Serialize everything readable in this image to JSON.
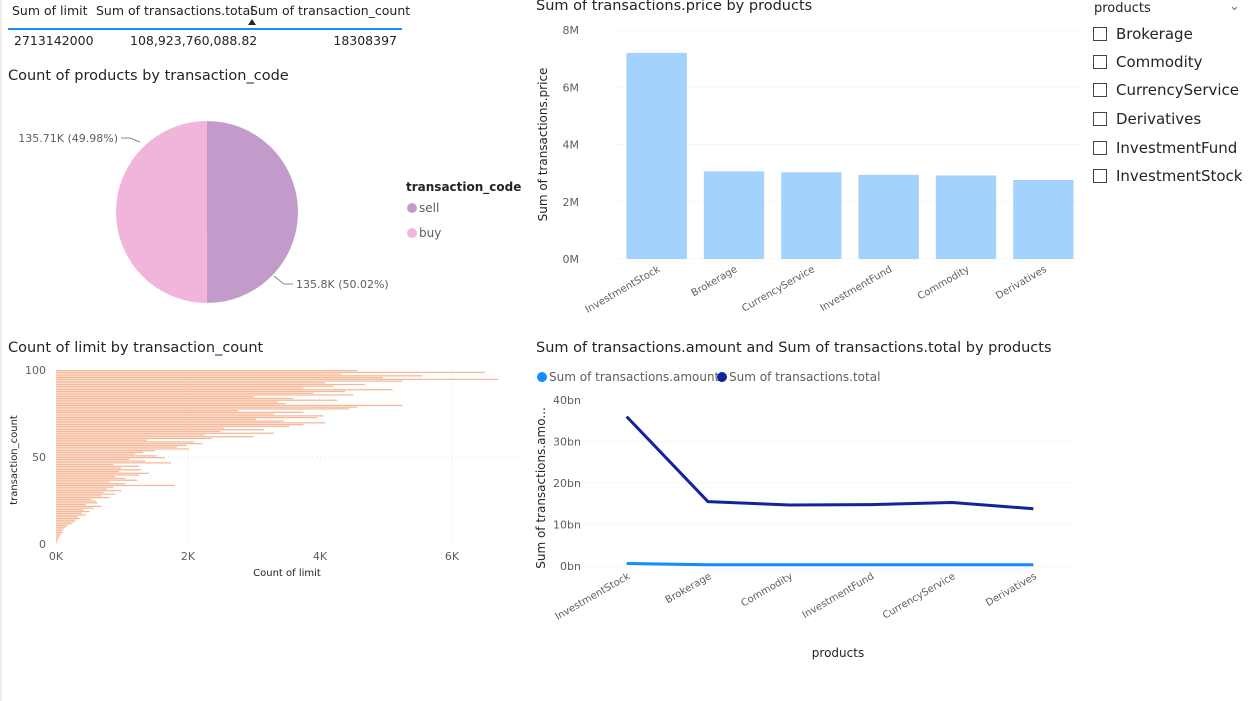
{
  "summary_table": {
    "headers": [
      "Sum of limit",
      "Sum of transactions.total",
      "Sum of transaction_count"
    ],
    "values": [
      "2713142000",
      "108,923,760,088.82",
      "18308397"
    ]
  },
  "slicer": {
    "title": "products",
    "items": [
      "Brokerage",
      "Commodity",
      "CurrencyService",
      "Derivatives",
      "InvestmentFund",
      "InvestmentStock"
    ]
  },
  "colors": {
    "sell": "#c39bcb",
    "buy": "#f1b4db",
    "price_bar": "#a3d3fc",
    "hist_bar": "#f5b897",
    "amount_line": "#118dff",
    "total_line": "#12239e"
  },
  "chart_data": [
    {
      "type": "pie",
      "title": "Count of products by transaction_code",
      "legend_title": "transaction_code",
      "categories": [
        "sell",
        "buy"
      ],
      "values": [
        135800,
        135710
      ],
      "labels": [
        "135.8K (50.02%)",
        "135.71K (49.98%)"
      ],
      "legend_position": "right"
    },
    {
      "type": "bar",
      "title": "Sum of transactions.price by products",
      "xlabel": "",
      "ylabel": "Sum of transactions.price",
      "categories": [
        "InvestmentStock",
        "Brokerage",
        "CurrencyService",
        "InvestmentFund",
        "Commodity",
        "Derivatives"
      ],
      "values": [
        7200000,
        3060000,
        3030000,
        2940000,
        2920000,
        2760000
      ],
      "ylim": [
        0,
        8000000
      ],
      "yticks": [
        "0M",
        "2M",
        "4M",
        "6M",
        "8M"
      ],
      "grid": true
    },
    {
      "type": "bar",
      "orientation": "horizontal",
      "title": "Count of limit by transaction_count",
      "xlabel": "Count of limit",
      "ylabel": "transaction_count",
      "y": [
        100,
        99,
        98,
        97,
        96,
        95,
        94,
        93,
        92,
        91,
        90,
        89,
        88,
        87,
        86,
        85,
        84,
        83,
        82,
        81,
        80,
        79,
        78,
        77,
        76,
        75,
        74,
        73,
        72,
        71,
        70,
        69,
        68,
        67,
        66,
        65,
        64,
        63,
        62,
        61,
        60,
        59,
        58,
        57,
        56,
        55,
        54,
        53,
        52,
        51,
        50,
        49,
        48,
        47,
        46,
        45,
        44,
        43,
        42,
        41,
        40,
        39,
        38,
        37,
        36,
        35,
        34,
        33,
        32,
        31,
        30,
        29,
        28,
        27,
        26,
        25,
        24,
        23,
        22,
        21,
        20,
        19,
        18,
        17,
        16,
        15,
        14,
        13,
        12,
        11,
        10,
        9,
        8,
        7,
        6,
        5,
        4,
        3,
        2,
        1
      ],
      "values": [
        4560,
        6500,
        4320,
        5550,
        4950,
        6700,
        5250,
        4080,
        4680,
        4200,
        3750,
        5100,
        4380,
        3900,
        4500,
        3000,
        3600,
        4260,
        3360,
        3480,
        5250,
        4560,
        4440,
        2760,
        3750,
        3300,
        4050,
        3960,
        3030,
        3450,
        4080,
        3750,
        3540,
        2550,
        3150,
        2490,
        3300,
        2250,
        3000,
        2370,
        1380,
        2100,
        2220,
        1980,
        1830,
        2010,
        1500,
        1320,
        1200,
        1530,
        1650,
        1110,
        1350,
        1740,
        870,
        1260,
        990,
        1290,
        960,
        1410,
        1260,
        900,
        1050,
        1230,
        810,
        1050,
        1800,
        870,
        780,
        990,
        720,
        900,
        690,
        810,
        540,
        600,
        630,
        450,
        690,
        570,
        420,
        510,
        390,
        450,
        330,
        360,
        300,
        270,
        240,
        180,
        150,
        120,
        90,
        105,
        75,
        60,
        45,
        30,
        20,
        10
      ],
      "xlim": [
        0,
        7000
      ],
      "xticks": [
        "0K",
        "2K",
        "4K",
        "6K"
      ],
      "yticks": [
        "0",
        "50",
        "100"
      ],
      "grid": true
    },
    {
      "type": "line",
      "title": "Sum of transactions.amount and Sum of transactions.total by products",
      "xlabel": "products",
      "ylabel": "Sum of transactions.amo...",
      "categories": [
        "InvestmentStock",
        "Brokerage",
        "Commodity",
        "InvestmentFund",
        "CurrencyService",
        "Derivatives"
      ],
      "series": [
        {
          "name": "Sum of transactions.amount",
          "values": [
            0.6,
            0.3,
            0.3,
            0.3,
            0.3,
            0.3
          ]
        },
        {
          "name": "Sum of transactions.total",
          "values": [
            36.0,
            15.5,
            14.7,
            14.8,
            15.3,
            13.8
          ]
        }
      ],
      "ylim": [
        0,
        40
      ],
      "yticks": [
        "0bn",
        "10bn",
        "20bn",
        "30bn",
        "40bn"
      ],
      "legend_position": "top-left",
      "grid": true
    }
  ]
}
